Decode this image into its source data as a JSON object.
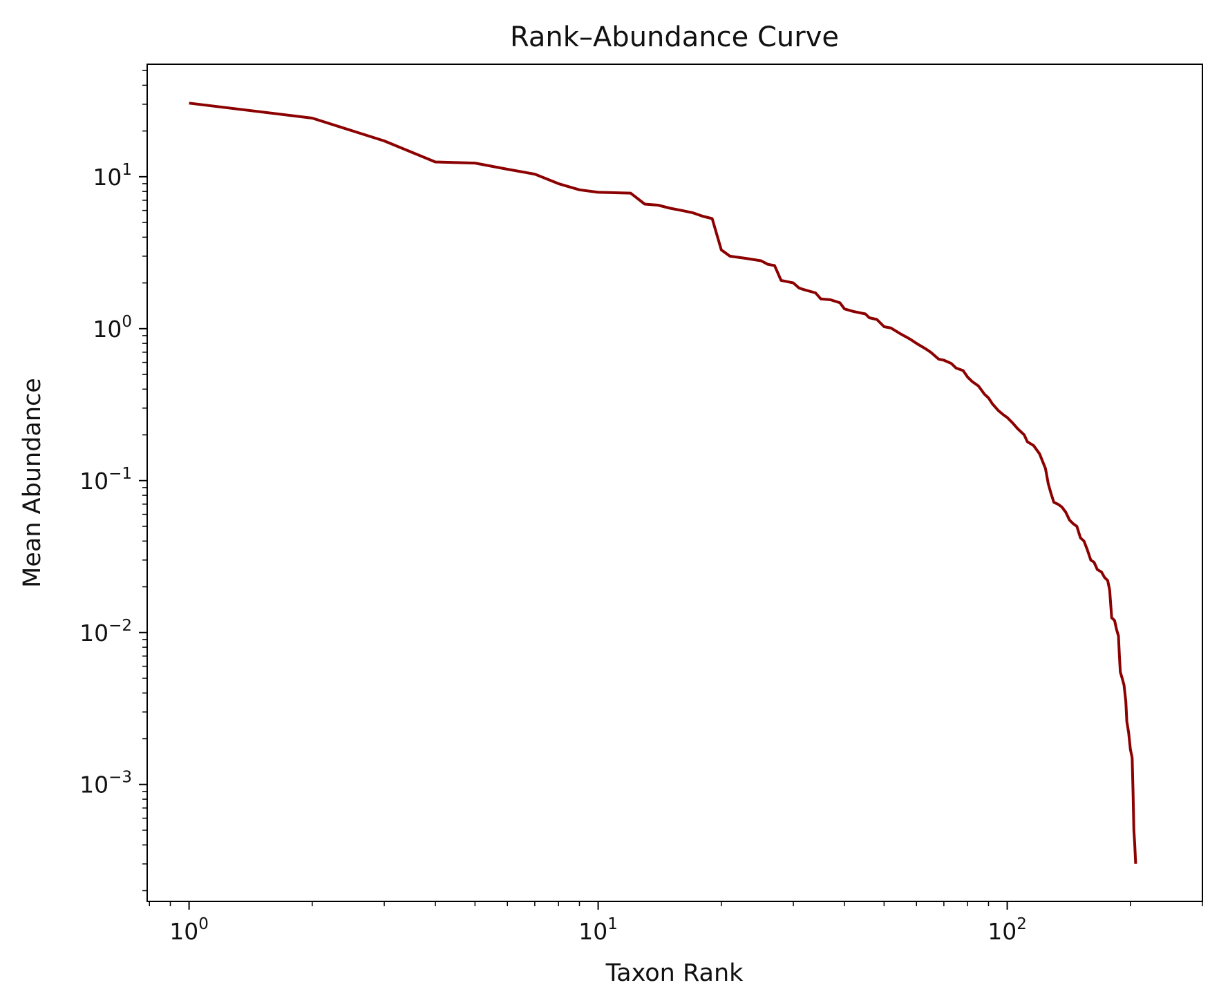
{
  "chart_data": {
    "type": "line",
    "title": "Rank–Abundance Curve",
    "xlabel": "Taxon Rank",
    "ylabel": "Mean Abundance",
    "xscale": "log",
    "yscale": "log",
    "xlim": [
      0.79,
      300
    ],
    "ylim": [
      0.00017,
      55
    ],
    "grid": false,
    "legend": "none",
    "x_ticks": [
      {
        "value": 1,
        "base": "10",
        "exp": "0"
      },
      {
        "value": 10,
        "base": "10",
        "exp": "1"
      },
      {
        "value": 100,
        "base": "10",
        "exp": "2"
      }
    ],
    "y_ticks": [
      {
        "value": 0.001,
        "base": "10",
        "exp": "−3"
      },
      {
        "value": 0.01,
        "base": "10",
        "exp": "−2"
      },
      {
        "value": 0.1,
        "base": "10",
        "exp": "−1"
      },
      {
        "value": 1,
        "base": "10",
        "exp": "0"
      },
      {
        "value": 10,
        "base": "10",
        "exp": "1"
      }
    ],
    "series": [
      {
        "color": "#8b0000",
        "points": [
          [
            1,
            30.5
          ],
          [
            2,
            24.3
          ],
          [
            3,
            17.2
          ],
          [
            4,
            12.5
          ],
          [
            5,
            12.3
          ],
          [
            6,
            11.2
          ],
          [
            7,
            10.4
          ],
          [
            8,
            9.0
          ],
          [
            9,
            8.2
          ],
          [
            10,
            7.9
          ],
          [
            12,
            7.8
          ],
          [
            13,
            6.6
          ],
          [
            14,
            6.5
          ],
          [
            15,
            6.2
          ],
          [
            16,
            6.0
          ],
          [
            17,
            5.8
          ],
          [
            18,
            5.5
          ],
          [
            19,
            5.3
          ],
          [
            20,
            3.3
          ],
          [
            21,
            3.0
          ],
          [
            23,
            2.9
          ],
          [
            25,
            2.8
          ],
          [
            26,
            2.65
          ],
          [
            27,
            2.6
          ],
          [
            28,
            2.08
          ],
          [
            30,
            2.0
          ],
          [
            31,
            1.85
          ],
          [
            32,
            1.8
          ],
          [
            34,
            1.72
          ],
          [
            35,
            1.57
          ],
          [
            37,
            1.55
          ],
          [
            39,
            1.48
          ],
          [
            40,
            1.35
          ],
          [
            42,
            1.3
          ],
          [
            45,
            1.25
          ],
          [
            46,
            1.18
          ],
          [
            48,
            1.15
          ],
          [
            50,
            1.03
          ],
          [
            52,
            1.01
          ],
          [
            55,
            0.92
          ],
          [
            58,
            0.85
          ],
          [
            60,
            0.8
          ],
          [
            63,
            0.74
          ],
          [
            65,
            0.7
          ],
          [
            68,
            0.63
          ],
          [
            70,
            0.62
          ],
          [
            73,
            0.59
          ],
          [
            75,
            0.55
          ],
          [
            78,
            0.53
          ],
          [
            80,
            0.48
          ],
          [
            82,
            0.45
          ],
          [
            85,
            0.42
          ],
          [
            88,
            0.37
          ],
          [
            90,
            0.35
          ],
          [
            92,
            0.32
          ],
          [
            95,
            0.29
          ],
          [
            98,
            0.27
          ],
          [
            100,
            0.26
          ],
          [
            103,
            0.24
          ],
          [
            106,
            0.22
          ],
          [
            110,
            0.2
          ],
          [
            112,
            0.18
          ],
          [
            116,
            0.17
          ],
          [
            120,
            0.15
          ],
          [
            124,
            0.12
          ],
          [
            126,
            0.095
          ],
          [
            128,
            0.082
          ],
          [
            130,
            0.072
          ],
          [
            133,
            0.07
          ],
          [
            136,
            0.067
          ],
          [
            139,
            0.062
          ],
          [
            142,
            0.055
          ],
          [
            145,
            0.052
          ],
          [
            148,
            0.05
          ],
          [
            151,
            0.042
          ],
          [
            154,
            0.04
          ],
          [
            157,
            0.035
          ],
          [
            160,
            0.03
          ],
          [
            163,
            0.029
          ],
          [
            166,
            0.026
          ],
          [
            170,
            0.025
          ],
          [
            173,
            0.023
          ],
          [
            176,
            0.022
          ],
          [
            178,
            0.019
          ],
          [
            180,
            0.0125
          ],
          [
            183,
            0.012
          ],
          [
            185,
            0.0105
          ],
          [
            187,
            0.0095
          ],
          [
            188,
            0.007
          ],
          [
            189,
            0.0055
          ],
          [
            191,
            0.005
          ],
          [
            193,
            0.0045
          ],
          [
            195,
            0.0035
          ],
          [
            196,
            0.0026
          ],
          [
            198,
            0.0022
          ],
          [
            200,
            0.0017
          ],
          [
            202,
            0.0015
          ],
          [
            203,
            0.0009
          ],
          [
            204,
            0.0005
          ],
          [
            205,
            0.0004
          ],
          [
            206,
            0.0003
          ]
        ]
      }
    ]
  }
}
